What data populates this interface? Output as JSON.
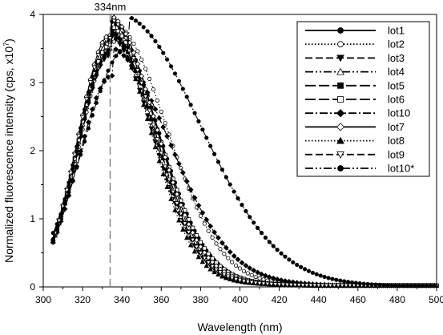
{
  "chart_data": {
    "type": "line",
    "title": "",
    "xlabel": "Wavelength (nm)",
    "ylabel_main": "Normalized fluorescence intensity (cps, x10",
    "ylabel_sup": "7",
    "ylabel_close": ")",
    "xlim": [
      300,
      500
    ],
    "ylim": [
      0,
      4
    ],
    "xticks": [
      "300",
      "320",
      "340",
      "360",
      "380",
      "400",
      "420",
      "440",
      "460",
      "480",
      "500"
    ],
    "yticks": [
      "0",
      "1",
      "2",
      "3",
      "4"
    ],
    "annotation": {
      "text": "334nm",
      "x": 334
    },
    "grid": false,
    "legend_position": "top-right",
    "series": [
      {
        "name": "lot1",
        "line": "solid",
        "marker": "circle-filled",
        "peak_x": 334,
        "peak_y": 3.62,
        "width_left": 16,
        "width_right": 24,
        "tail": 0.02
      },
      {
        "name": "lot2",
        "line": "dotted",
        "marker": "circle-open",
        "peak_x": 336,
        "peak_y": 3.6,
        "width_left": 17,
        "width_right": 27,
        "tail": 0.02
      },
      {
        "name": "lot3",
        "line": "dashed",
        "marker": "triangle-down",
        "peak_x": 334,
        "peak_y": 3.4,
        "width_left": 16,
        "width_right": 22,
        "tail": 0.02
      },
      {
        "name": "lot4",
        "line": "dash-dot-dot",
        "marker": "triangle-open",
        "peak_x": 334,
        "peak_y": 3.5,
        "width_left": 16,
        "width_right": 22,
        "tail": 0.02
      },
      {
        "name": "lot5",
        "line": "long-dash",
        "marker": "square-filled",
        "peak_x": 334,
        "peak_y": 3.48,
        "width_left": 16,
        "width_right": 23,
        "tail": 0.02
      },
      {
        "name": "lot6",
        "line": "long-dash",
        "marker": "square-open",
        "peak_x": 334,
        "peak_y": 3.55,
        "width_left": 16,
        "width_right": 24,
        "tail": 0.02
      },
      {
        "name": "lot10",
        "line": "dash-dot",
        "marker": "diamond-filled",
        "peak_x": 335,
        "peak_y": 3.1,
        "width_left": 17,
        "width_right": 30,
        "tail": 0.03
      },
      {
        "name": "lot7",
        "line": "solid",
        "marker": "diamond-open",
        "peak_x": 334,
        "peak_y": 3.7,
        "width_left": 16,
        "width_right": 23,
        "tail": 0.02
      },
      {
        "name": "lot8",
        "line": "dotted",
        "marker": "triangle-filled",
        "peak_x": 334,
        "peak_y": 3.45,
        "width_left": 16,
        "width_right": 21,
        "tail": 0.02
      },
      {
        "name": "lot9",
        "line": "dashed",
        "marker": "triangle-down-open",
        "peak_x": 334,
        "peak_y": 3.65,
        "width_left": 16,
        "width_right": 22,
        "tail": 0.02
      },
      {
        "name": "lot10*",
        "line": "dash-dot-dot",
        "marker": "hex-filled",
        "peak_x": 343,
        "peak_y": 3.52,
        "width_left": 22,
        "width_right": 38,
        "tail": 0.04
      }
    ]
  }
}
